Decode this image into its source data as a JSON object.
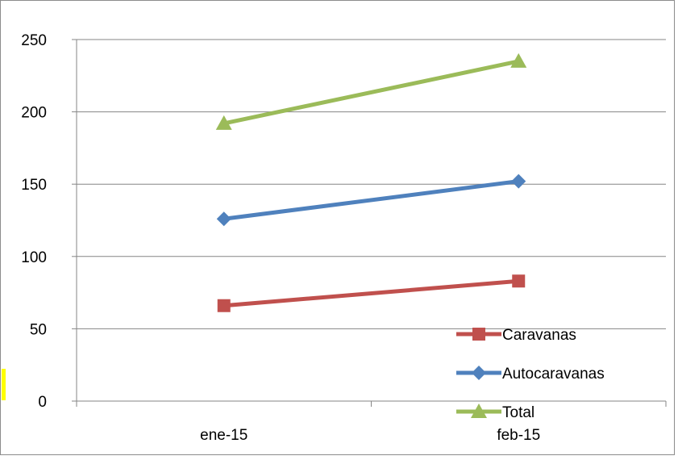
{
  "chart_data": {
    "type": "line",
    "categories": [
      "ene-15",
      "feb-15"
    ],
    "series": [
      {
        "name": "Caravanas",
        "values": [
          66,
          83
        ],
        "color": "#C0504D",
        "marker": "square"
      },
      {
        "name": "Autocaravanas",
        "values": [
          126,
          152
        ],
        "color": "#4F81BD",
        "marker": "diamond"
      },
      {
        "name": "Total",
        "values": [
          192,
          235
        ],
        "color": "#9BBB59",
        "marker": "triangle"
      }
    ],
    "yticks": [
      0,
      50,
      100,
      150,
      200,
      250
    ],
    "ylim": [
      0,
      250
    ],
    "grid": true,
    "legend_position": "bottom-right",
    "title": "",
    "xlabel": "",
    "ylabel": ""
  }
}
